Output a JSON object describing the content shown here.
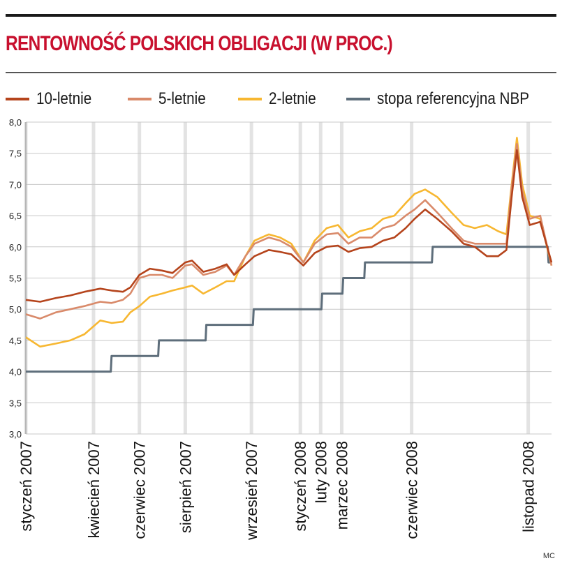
{
  "chart_data": {
    "type": "line",
    "title": "RENTOWNOŚĆ POLSKICH OBLIGACJI (W PROC.)",
    "ylim": [
      3.0,
      8.0
    ],
    "y_ticks": [
      "3,0",
      "3,5",
      "4,0",
      "4,5",
      "5,0",
      "5,5",
      "6,0",
      "6,5",
      "7,0",
      "7,5",
      "8,0"
    ],
    "y_tick_values": [
      3.0,
      3.5,
      4.0,
      4.5,
      5.0,
      5.5,
      6.0,
      6.5,
      7.0,
      7.5,
      8.0
    ],
    "grid": "horizontal",
    "x_range": [
      "2007-01-01",
      "2008-11-30"
    ],
    "date_markers": [
      {
        "label": "styczeń 2007",
        "date": "2007-01-01"
      },
      {
        "label": "kwiecień 2007",
        "date": "2007-04-01"
      },
      {
        "label": "czerwiec 2007",
        "date": "2007-06-01"
      },
      {
        "label": "sierpień 2007",
        "date": "2007-08-01"
      },
      {
        "label": "wrzesień 2007",
        "date": "2007-10-28"
      },
      {
        "label": "styczeń 2008",
        "date": "2008-01-01"
      },
      {
        "label": "luty 2008",
        "date": "2008-01-28"
      },
      {
        "label": "marzec 2008",
        "date": "2008-02-25"
      },
      {
        "label": "czerwiec 2008",
        "date": "2008-05-28"
      },
      {
        "label": "listopad 2008",
        "date": "2008-10-30"
      }
    ],
    "series": [
      {
        "name": "10-letnie",
        "color": "#b5441c",
        "x": [
          "2007-01-01",
          "2007-01-20",
          "2007-02-10",
          "2007-03-01",
          "2007-03-20",
          "2007-04-10",
          "2007-04-25",
          "2007-05-10",
          "2007-05-20",
          "2007-06-01",
          "2007-06-15",
          "2007-07-01",
          "2007-07-15",
          "2007-08-01",
          "2007-08-10",
          "2007-08-25",
          "2007-09-10",
          "2007-09-25",
          "2007-10-05",
          "2007-10-20",
          "2007-11-01",
          "2007-11-20",
          "2007-12-05",
          "2007-12-20",
          "2008-01-05",
          "2008-01-20",
          "2008-02-05",
          "2008-02-20",
          "2008-03-05",
          "2008-03-20",
          "2008-04-05",
          "2008-04-20",
          "2008-05-05",
          "2008-05-20",
          "2008-06-01",
          "2008-06-15",
          "2008-07-01",
          "2008-07-20",
          "2008-08-05",
          "2008-08-20",
          "2008-09-05",
          "2008-09-20",
          "2008-10-01",
          "2008-10-08",
          "2008-10-15",
          "2008-10-22",
          "2008-11-01",
          "2008-11-15",
          "2008-11-30"
        ],
        "values": [
          5.15,
          5.12,
          5.18,
          5.22,
          5.28,
          5.33,
          5.3,
          5.28,
          5.35,
          5.55,
          5.65,
          5.62,
          5.58,
          5.75,
          5.78,
          5.6,
          5.65,
          5.72,
          5.55,
          5.72,
          5.85,
          5.95,
          5.92,
          5.88,
          5.7,
          5.9,
          6.0,
          6.02,
          5.92,
          5.98,
          6.0,
          6.1,
          6.15,
          6.3,
          6.45,
          6.6,
          6.45,
          6.25,
          6.05,
          6.0,
          5.85,
          5.85,
          5.95,
          6.8,
          7.55,
          6.8,
          6.35,
          6.4,
          5.75
        ]
      },
      {
        "name": "5-letnie",
        "color": "#d98a6a",
        "x": [
          "2007-01-01",
          "2007-01-20",
          "2007-02-10",
          "2007-03-01",
          "2007-03-20",
          "2007-04-10",
          "2007-04-25",
          "2007-05-10",
          "2007-05-20",
          "2007-06-01",
          "2007-06-15",
          "2007-07-01",
          "2007-07-15",
          "2007-08-01",
          "2007-08-10",
          "2007-08-25",
          "2007-09-10",
          "2007-09-25",
          "2007-10-05",
          "2007-10-20",
          "2007-11-01",
          "2007-11-20",
          "2007-12-05",
          "2007-12-20",
          "2008-01-05",
          "2008-01-20",
          "2008-02-05",
          "2008-02-20",
          "2008-03-05",
          "2008-03-20",
          "2008-04-05",
          "2008-04-20",
          "2008-05-05",
          "2008-05-20",
          "2008-06-01",
          "2008-06-15",
          "2008-07-01",
          "2008-07-20",
          "2008-08-05",
          "2008-08-20",
          "2008-09-05",
          "2008-09-20",
          "2008-10-01",
          "2008-10-08",
          "2008-10-15",
          "2008-10-22",
          "2008-11-01",
          "2008-11-15",
          "2008-11-30"
        ],
        "values": [
          4.92,
          4.85,
          4.95,
          5.0,
          5.05,
          5.12,
          5.1,
          5.15,
          5.25,
          5.5,
          5.55,
          5.55,
          5.5,
          5.7,
          5.72,
          5.55,
          5.6,
          5.7,
          5.55,
          5.85,
          6.05,
          6.15,
          6.1,
          6.0,
          5.75,
          6.05,
          6.2,
          6.22,
          6.05,
          6.15,
          6.15,
          6.3,
          6.35,
          6.5,
          6.6,
          6.75,
          6.55,
          6.3,
          6.1,
          6.05,
          6.05,
          6.05,
          6.05,
          6.95,
          7.65,
          6.9,
          6.45,
          6.5,
          5.7
        ]
      },
      {
        "name": "2-letnie",
        "color": "#f7b731",
        "x": [
          "2007-01-01",
          "2007-01-20",
          "2007-02-10",
          "2007-03-01",
          "2007-03-20",
          "2007-04-10",
          "2007-04-25",
          "2007-05-10",
          "2007-05-20",
          "2007-06-01",
          "2007-06-15",
          "2007-07-01",
          "2007-07-15",
          "2007-08-01",
          "2007-08-10",
          "2007-08-25",
          "2007-09-10",
          "2007-09-25",
          "2007-10-05",
          "2007-10-20",
          "2007-11-01",
          "2007-11-20",
          "2007-12-05",
          "2007-12-20",
          "2008-01-05",
          "2008-01-20",
          "2008-02-05",
          "2008-02-20",
          "2008-03-05",
          "2008-03-20",
          "2008-04-05",
          "2008-04-20",
          "2008-05-05",
          "2008-05-20",
          "2008-06-01",
          "2008-06-15",
          "2008-07-01",
          "2008-07-20",
          "2008-08-05",
          "2008-08-20",
          "2008-09-05",
          "2008-09-20",
          "2008-10-01",
          "2008-10-08",
          "2008-10-15",
          "2008-10-22",
          "2008-11-01",
          "2008-11-15",
          "2008-11-30"
        ],
        "values": [
          4.55,
          4.4,
          4.45,
          4.5,
          4.6,
          4.82,
          4.78,
          4.8,
          4.95,
          5.05,
          5.2,
          5.25,
          5.3,
          5.35,
          5.38,
          5.25,
          5.35,
          5.45,
          5.45,
          5.85,
          6.1,
          6.2,
          6.15,
          6.05,
          5.75,
          6.1,
          6.3,
          6.35,
          6.15,
          6.25,
          6.3,
          6.45,
          6.5,
          6.7,
          6.85,
          6.92,
          6.8,
          6.55,
          6.35,
          6.3,
          6.35,
          6.25,
          6.2,
          7.0,
          7.75,
          7.0,
          6.5,
          6.45,
          5.7
        ]
      },
      {
        "name": "stopa referencyjna NBP",
        "color": "#5e6e7b",
        "x": [
          "2007-01-01",
          "2007-04-24",
          "2007-04-25",
          "2007-06-26",
          "2007-06-27",
          "2007-08-28",
          "2007-08-29",
          "2007-10-30",
          "2007-10-31",
          "2008-01-29",
          "2008-01-30",
          "2008-02-26",
          "2008-02-27",
          "2008-03-26",
          "2008-03-27",
          "2008-06-24",
          "2008-06-25",
          "2008-11-25",
          "2008-11-26",
          "2008-11-30"
        ],
        "values": [
          4.0,
          4.0,
          4.25,
          4.25,
          4.5,
          4.5,
          4.75,
          4.75,
          5.0,
          5.0,
          5.25,
          5.25,
          5.5,
          5.5,
          5.75,
          5.75,
          6.0,
          6.0,
          5.75,
          5.75
        ]
      }
    ],
    "legend_position": "top"
  },
  "credit": "MC"
}
